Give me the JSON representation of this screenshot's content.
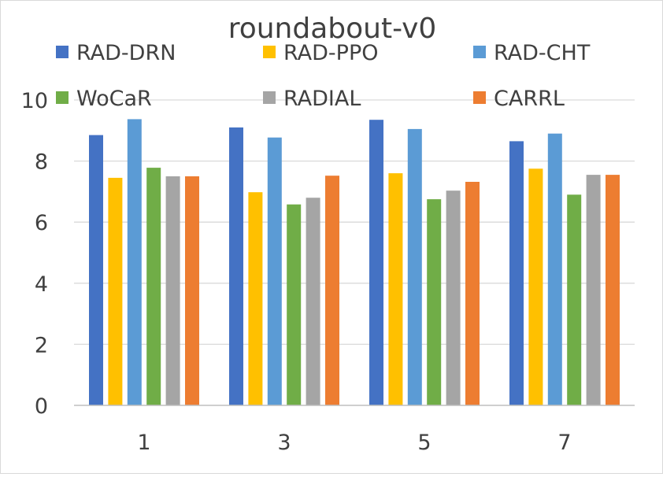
{
  "chart_data": {
    "type": "bar",
    "title": "roundabout-v0",
    "xlabel": "",
    "ylabel": "",
    "categories": [
      "1",
      "3",
      "5",
      "7"
    ],
    "ylim": [
      0,
      10
    ],
    "yticks": [
      0,
      2,
      4,
      6,
      8,
      10
    ],
    "grid": true,
    "legend_position": "top",
    "series": [
      {
        "name": "RAD-DRN",
        "color": "#4472C4",
        "values": [
          8.85,
          9.1,
          9.35,
          8.65
        ]
      },
      {
        "name": "RAD-PPO",
        "color": "#FFC000",
        "values": [
          7.45,
          6.98,
          7.6,
          7.75
        ]
      },
      {
        "name": "RAD-CHT",
        "color": "#5B9BD5",
        "values": [
          9.37,
          8.77,
          9.05,
          8.9
        ]
      },
      {
        "name": "WoCaR",
        "color": "#70AD47",
        "values": [
          7.78,
          6.58,
          6.75,
          6.9
        ]
      },
      {
        "name": "RADIAL",
        "color": "#A5A5A5",
        "values": [
          7.5,
          6.8,
          7.03,
          7.55
        ]
      },
      {
        "name": "CARRL",
        "color": "#ED7D31",
        "values": [
          7.5,
          7.52,
          7.32,
          7.55
        ]
      }
    ]
  }
}
